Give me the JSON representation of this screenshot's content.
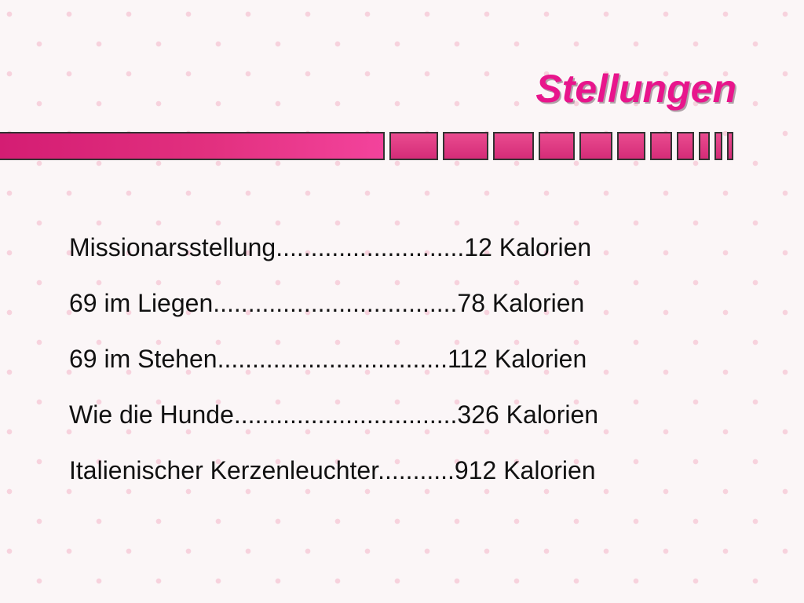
{
  "slide": {
    "title": "Stellungen",
    "entries": [
      {
        "text": "Missionarsstellung...........................12 Kalorien"
      },
      {
        "text": "69 im Liegen...................................78 Kalorien"
      },
      {
        "text": "69 im Stehen.................................112 Kalorien"
      },
      {
        "text": "Wie die Hunde................................326 Kalorien"
      },
      {
        "text": "Italienischer Kerzenleuchter...........912 Kalorien"
      }
    ]
  },
  "colors": {
    "title": "#e8158c",
    "bar": "#d52c78",
    "background_heart": "#f4b4c8"
  }
}
